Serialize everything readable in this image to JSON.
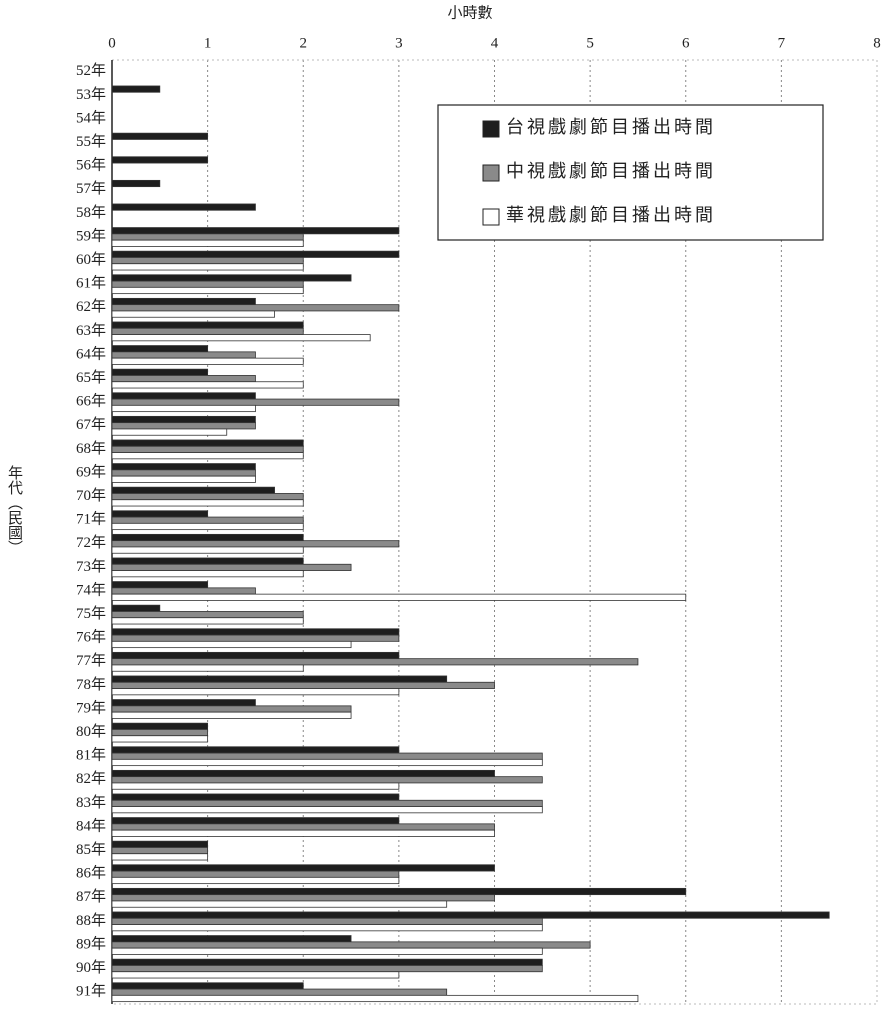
{
  "chart_data": {
    "type": "barh",
    "xlabel": "小時數",
    "ylabel": "年代（民國）",
    "xlim": [
      0,
      8
    ],
    "xticks": [
      0,
      1,
      2,
      3,
      4,
      5,
      6,
      7,
      8
    ],
    "grid": true,
    "legend": "upper right",
    "categories": [
      "52年",
      "53年",
      "54年",
      "55年",
      "56年",
      "57年",
      "58年",
      "59年",
      "60年",
      "61年",
      "62年",
      "63年",
      "64年",
      "65年",
      "66年",
      "67年",
      "68年",
      "69年",
      "70年",
      "71年",
      "72年",
      "73年",
      "74年",
      "75年",
      "76年",
      "77年",
      "78年",
      "79年",
      "80年",
      "81年",
      "82年",
      "83年",
      "84年",
      "85年",
      "86年",
      "87年",
      "88年",
      "89年",
      "90年",
      "91年"
    ],
    "series": [
      {
        "name": "台視戲劇節目播出時間",
        "color": "#1e1e1e",
        "values": [
          0,
          0.5,
          0,
          1,
          1,
          0.5,
          1.5,
          3,
          3,
          2.5,
          1.5,
          2,
          1,
          1,
          1.5,
          1.5,
          2,
          1.5,
          1.7,
          1,
          2,
          2,
          1,
          0.5,
          3,
          3,
          3.5,
          1.5,
          1,
          3,
          4,
          3,
          3,
          1,
          4,
          6,
          7.5,
          2.5,
          4.5,
          2
        ]
      },
      {
        "name": "中視戲劇節目播出時間",
        "color": "#8a8a8a",
        "values": [
          0,
          0,
          0,
          0,
          0,
          0,
          0,
          2,
          2,
          2,
          3,
          2,
          1.5,
          1.5,
          3,
          1.5,
          2,
          1.5,
          2,
          2,
          3,
          2.5,
          1.5,
          2,
          3,
          5.5,
          4,
          2.5,
          1,
          4.5,
          4.5,
          4.5,
          4,
          1,
          3,
          4,
          4.5,
          5,
          4.5,
          3.5
        ]
      },
      {
        "name": "華視戲劇節目播出時間",
        "color": "#ffffff",
        "values": [
          0,
          0,
          0,
          0,
          0,
          0,
          0,
          2,
          2,
          2,
          1.7,
          2.7,
          2,
          2,
          1.5,
          1.2,
          2,
          1.5,
          2,
          2,
          2,
          2,
          6,
          2,
          2.5,
          2,
          3,
          2.5,
          1,
          4.5,
          3,
          4.5,
          4,
          1,
          3,
          3.5,
          4.5,
          4.5,
          3,
          5.5
        ]
      }
    ]
  }
}
